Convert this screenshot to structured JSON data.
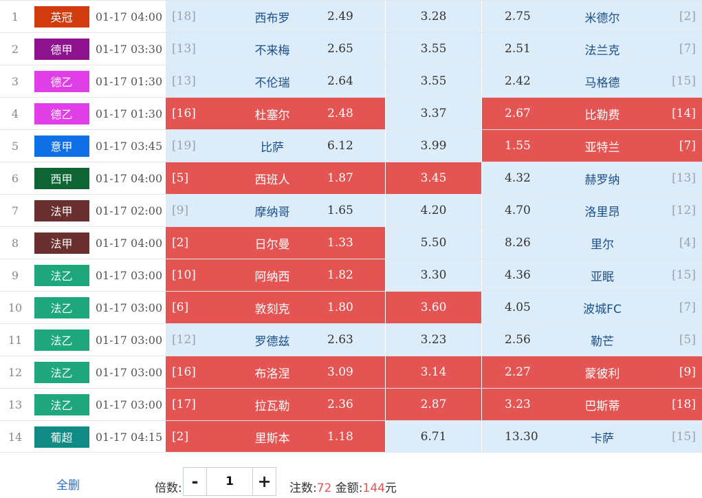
{
  "colors": {
    "selected": "#e35452",
    "unselected": "#dcecf9",
    "team_text": "#1b4f8a",
    "link": "#2c6cc4"
  },
  "matches": [
    {
      "num": "1",
      "league": "英冠",
      "league_color": "#d13b0e",
      "time": "01-17 04:00",
      "home_rank": "[18]",
      "home": "西布罗",
      "home_odds": "2.49",
      "draw_odds": "3.28",
      "away_odds": "2.75",
      "away": "米德尔",
      "away_rank": "[2]",
      "home_sel": false,
      "draw_sel": false,
      "away_sel": false
    },
    {
      "num": "2",
      "league": "德甲",
      "league_color": "#8e128f",
      "time": "01-17 03:30",
      "home_rank": "[13]",
      "home": "不来梅",
      "home_odds": "2.65",
      "draw_odds": "3.55",
      "away_odds": "2.51",
      "away": "法兰克",
      "away_rank": "[7]",
      "home_sel": false,
      "draw_sel": false,
      "away_sel": false
    },
    {
      "num": "3",
      "league": "德乙",
      "league_color": "#e03ee6",
      "time": "01-17 01:30",
      "home_rank": "[13]",
      "home": "不伦瑞",
      "home_odds": "2.64",
      "draw_odds": "3.55",
      "away_odds": "2.42",
      "away": "马格德",
      "away_rank": "[15]",
      "home_sel": false,
      "draw_sel": false,
      "away_sel": false
    },
    {
      "num": "4",
      "league": "德乙",
      "league_color": "#e03ee6",
      "time": "01-17 01:30",
      "home_rank": "[16]",
      "home": "杜塞尔",
      "home_odds": "2.48",
      "draw_odds": "3.37",
      "away_odds": "2.67",
      "away": "比勒费",
      "away_rank": "[14]",
      "home_sel": true,
      "draw_sel": false,
      "away_sel": true
    },
    {
      "num": "5",
      "league": "意甲",
      "league_color": "#0f6fe6",
      "time": "01-17 03:45",
      "home_rank": "[19]",
      "home": "比萨",
      "home_odds": "6.12",
      "draw_odds": "3.99",
      "away_odds": "1.55",
      "away": "亚特兰",
      "away_rank": "[7]",
      "home_sel": false,
      "draw_sel": false,
      "away_sel": true
    },
    {
      "num": "6",
      "league": "西甲",
      "league_color": "#0f6433",
      "time": "01-17 04:00",
      "home_rank": "[5]",
      "home": "西班人",
      "home_odds": "1.87",
      "draw_odds": "3.45",
      "away_odds": "4.32",
      "away": "赫罗纳",
      "away_rank": "[13]",
      "home_sel": true,
      "draw_sel": true,
      "away_sel": false
    },
    {
      "num": "7",
      "league": "法甲",
      "league_color": "#6a3030",
      "time": "01-17 02:00",
      "home_rank": "[9]",
      "home": "摩纳哥",
      "home_odds": "1.65",
      "draw_odds": "4.20",
      "away_odds": "4.70",
      "away": "洛里昂",
      "away_rank": "[12]",
      "home_sel": false,
      "draw_sel": false,
      "away_sel": false
    },
    {
      "num": "8",
      "league": "法甲",
      "league_color": "#6a3030",
      "time": "01-17 04:00",
      "home_rank": "[2]",
      "home": "日尔曼",
      "home_odds": "1.33",
      "draw_odds": "5.50",
      "away_odds": "8.26",
      "away": "里尔",
      "away_rank": "[4]",
      "home_sel": true,
      "draw_sel": false,
      "away_sel": false
    },
    {
      "num": "9",
      "league": "法乙",
      "league_color": "#1ea77a",
      "time": "01-17 03:00",
      "home_rank": "[10]",
      "home": "阿纳西",
      "home_odds": "1.82",
      "draw_odds": "3.30",
      "away_odds": "4.36",
      "away": "亚眠",
      "away_rank": "[15]",
      "home_sel": true,
      "draw_sel": false,
      "away_sel": false
    },
    {
      "num": "10",
      "league": "法乙",
      "league_color": "#1ea77a",
      "time": "01-17 03:00",
      "home_rank": "[6]",
      "home": "敦刻克",
      "home_odds": "1.80",
      "draw_odds": "3.60",
      "away_odds": "4.05",
      "away": "波城FC",
      "away_rank": "[7]",
      "home_sel": true,
      "draw_sel": true,
      "away_sel": false
    },
    {
      "num": "11",
      "league": "法乙",
      "league_color": "#1ea77a",
      "time": "01-17 03:00",
      "home_rank": "[12]",
      "home": "罗德兹",
      "home_odds": "2.63",
      "draw_odds": "3.23",
      "away_odds": "2.56",
      "away": "勒芒",
      "away_rank": "[5]",
      "home_sel": false,
      "draw_sel": false,
      "away_sel": false
    },
    {
      "num": "12",
      "league": "法乙",
      "league_color": "#1ea77a",
      "time": "01-17 03:00",
      "home_rank": "[16]",
      "home": "布洛涅",
      "home_odds": "3.09",
      "draw_odds": "3.14",
      "away_odds": "2.27",
      "away": "蒙彼利",
      "away_rank": "[9]",
      "home_sel": true,
      "draw_sel": true,
      "away_sel": true
    },
    {
      "num": "13",
      "league": "法乙",
      "league_color": "#1ea77a",
      "time": "01-17 03:00",
      "home_rank": "[17]",
      "home": "拉瓦勒",
      "home_odds": "2.36",
      "draw_odds": "2.87",
      "away_odds": "3.23",
      "away": "巴斯蒂",
      "away_rank": "[18]",
      "home_sel": true,
      "draw_sel": true,
      "away_sel": true
    },
    {
      "num": "14",
      "league": "葡超",
      "league_color": "#0f8a85",
      "time": "01-17 04:15",
      "home_rank": "[2]",
      "home": "里斯本",
      "home_odds": "1.18",
      "draw_odds": "6.71",
      "away_odds": "13.30",
      "away": "卡萨",
      "away_rank": "[15]",
      "home_sel": true,
      "draw_sel": false,
      "away_sel": false
    }
  ],
  "footer": {
    "clear_label": "全删",
    "multiplier_label": "倍数:",
    "minus_label": "-",
    "multiplier_value": "1",
    "plus_label": "+",
    "bets_label": "注数:",
    "bets_value": "72",
    "amount_label": "金额:",
    "amount_value": "144",
    "amount_unit": "元"
  }
}
